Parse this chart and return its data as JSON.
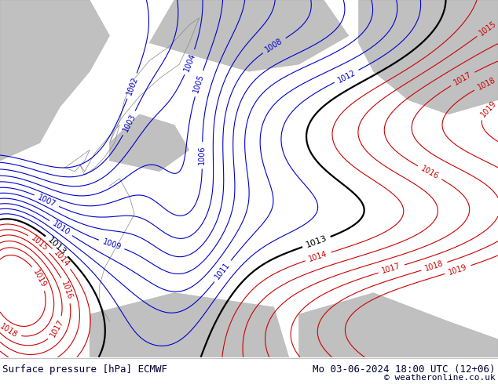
{
  "title_left": "Surface pressure [hPa] ECMWF",
  "title_right": "Mo 03-06-2024 18:00 UTC (12+06)",
  "copyright": "© weatheronline.co.uk",
  "fig_width": 6.34,
  "fig_height": 4.9,
  "dpi": 100,
  "bg_color": "#ffffff",
  "land_color_green": "#c8e87a",
  "land_color_gray": "#c0c0c0",
  "title_fontsize": 9,
  "copyright_fontsize": 8,
  "contour_label_fontsize": 7,
  "blue_contour_color": "#0000cc",
  "red_contour_color": "#cc0000",
  "black_contour_color": "#000000"
}
